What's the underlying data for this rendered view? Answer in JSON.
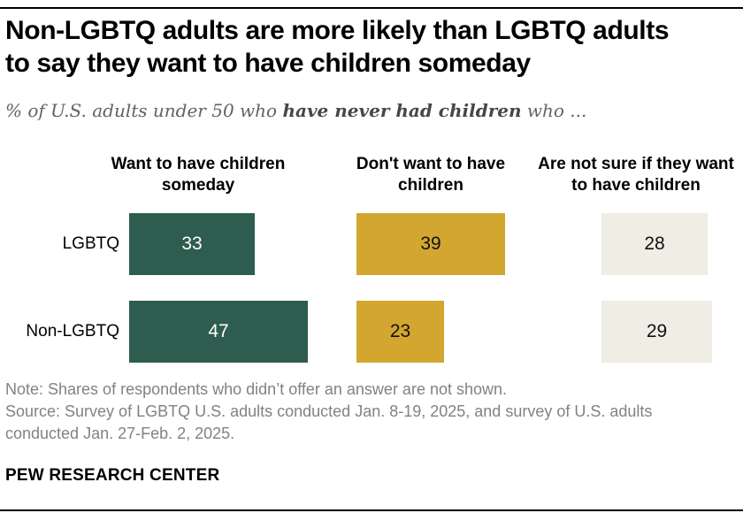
{
  "report": {
    "title_line1": "Non-LGBTQ adults are more likely than LGBTQ adults",
    "title_line2": "to say they want to have children someday",
    "subtitle": {
      "prefix": "% of U.S. adults under 50 who ",
      "bold": "have never had children",
      "suffix": " who ..."
    },
    "note": "Note: Shares of respondents who didn’t offer an answer are not shown.",
    "source_line1": "Source: Survey of LGBTQ U.S. adults conducted Jan. 8-19, 2025, and survey of U.S. adults",
    "source_line2": "conducted Jan. 27-Feb. 2, 2025.",
    "branding": "PEW RESEARCH CENTER"
  },
  "chart_data": {
    "type": "bar",
    "orientation": "horizontal",
    "unit": "percent",
    "axis_hidden": true,
    "value_labels_inside_bars": true,
    "row_labels": [
      "LGBTQ",
      "Non-LGBTQ"
    ],
    "columns": [
      {
        "header": "Want to have children someday",
        "color": "#2E5C4E",
        "label_color": "#FFFFFF",
        "values": [
          33,
          47
        ]
      },
      {
        "header": "Don't want to have children",
        "color": "#D3A62F",
        "label_color": "#111111",
        "values": [
          39,
          23
        ]
      },
      {
        "header": "Are not sure if they want to have children",
        "color": "#EFEDE4",
        "label_color": "#111111",
        "values": [
          28,
          29
        ]
      }
    ]
  }
}
